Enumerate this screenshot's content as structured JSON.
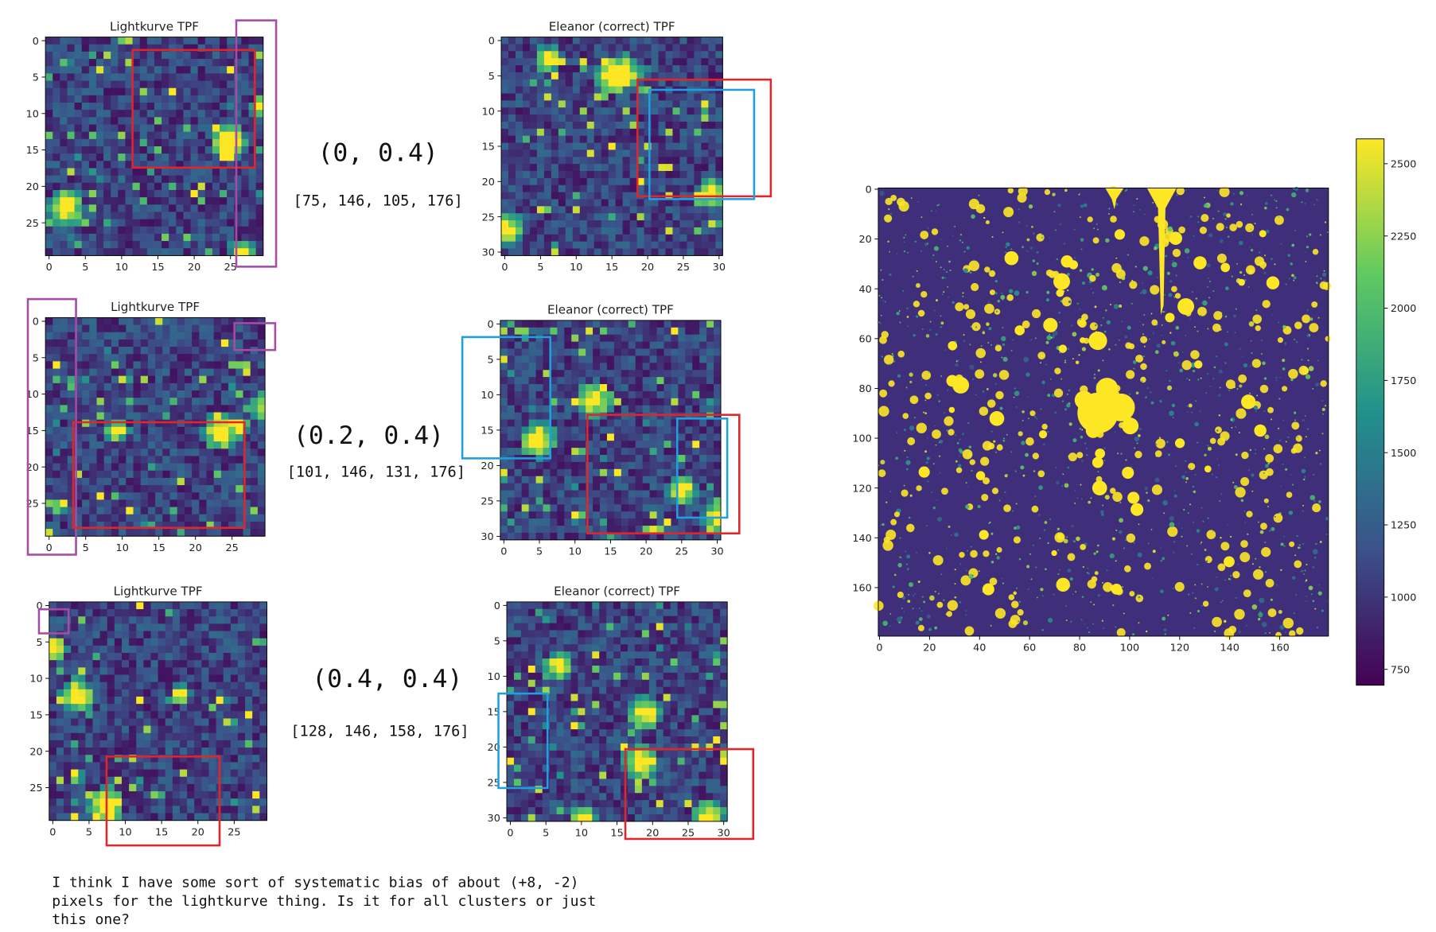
{
  "chart_data": [
    {
      "type": "heatmap",
      "title": "Lightkurve TPF",
      "xlim": [
        -0.5,
        29.5
      ],
      "ylim": [
        -0.5,
        29.5
      ],
      "y_inverted": true,
      "xticks": [
        0,
        5,
        10,
        15,
        20,
        25
      ],
      "yticks": [
        0,
        5,
        10,
        15,
        20,
        25
      ],
      "colormap": "viridis"
    },
    {
      "type": "heatmap",
      "title": "Eleanor (correct) TPF",
      "xlim": [
        -0.5,
        30.5
      ],
      "ylim": [
        -0.5,
        30.5
      ],
      "y_inverted": true,
      "xticks": [
        0,
        5,
        10,
        15,
        20,
        25,
        30
      ],
      "yticks": [
        0,
        5,
        10,
        15,
        20,
        25,
        30
      ],
      "colormap": "viridis"
    },
    {
      "type": "heatmap",
      "title": "Lightkurve TPF",
      "xlim": [
        -0.5,
        29.5
      ],
      "ylim": [
        -0.5,
        29.5
      ],
      "y_inverted": true,
      "xticks": [
        0,
        5,
        10,
        15,
        20,
        25
      ],
      "yticks": [
        0,
        5,
        10,
        15,
        20,
        25
      ],
      "colormap": "viridis"
    },
    {
      "type": "heatmap",
      "title": "Eleanor (correct) TPF",
      "xlim": [
        -0.5,
        30.5
      ],
      "ylim": [
        -0.5,
        30.5
      ],
      "y_inverted": true,
      "xticks": [
        0,
        5,
        10,
        15,
        20,
        25,
        30
      ],
      "yticks": [
        0,
        5,
        10,
        15,
        20,
        25,
        30
      ],
      "colormap": "viridis"
    },
    {
      "type": "heatmap",
      "title": "Lightkurve TPF",
      "xlim": [
        -0.5,
        29.5
      ],
      "ylim": [
        -0.5,
        29.5
      ],
      "y_inverted": true,
      "xticks": [
        0,
        5,
        10,
        15,
        20,
        25
      ],
      "yticks": [
        0,
        5,
        10,
        15,
        20,
        25
      ],
      "colormap": "viridis"
    },
    {
      "type": "heatmap",
      "title": "Eleanor (correct) TPF",
      "xlim": [
        -0.5,
        30.5
      ],
      "ylim": [
        -0.5,
        30.5
      ],
      "y_inverted": true,
      "xticks": [
        0,
        5,
        10,
        15,
        20,
        25,
        30
      ],
      "yticks": [
        0,
        5,
        10,
        15,
        20,
        25,
        30
      ],
      "colormap": "viridis"
    },
    {
      "type": "image",
      "xlim": [
        -0.5,
        179.5
      ],
      "ylim": [
        -0.5,
        179.5
      ],
      "y_inverted": true,
      "xticks": [
        0,
        20,
        40,
        60,
        80,
        100,
        120,
        140,
        160
      ],
      "yticks": [
        0,
        20,
        40,
        60,
        80,
        100,
        120,
        140,
        160
      ],
      "colormap": "viridis",
      "colorbar_lim": [
        695,
        2586
      ],
      "colorbar_ticks": [
        750,
        1000,
        1250,
        1500,
        1750,
        2000,
        2250,
        2500
      ]
    }
  ],
  "annotations": [
    {
      "offset": "(0, 0.4)",
      "bounds": "[75, 146, 105, 176]"
    },
    {
      "offset": "(0.2, 0.4)",
      "bounds": "[101, 146, 131, 176]"
    },
    {
      "offset": "(0.4, 0.4)",
      "bounds": "[128, 146, 158, 176]"
    }
  ],
  "note_lines": [
    "I think I have some sort of systematic bias of about (+8, -2)",
    "pixels for the lightkurve thing. Is it for all clusters or just",
    "this one?"
  ]
}
